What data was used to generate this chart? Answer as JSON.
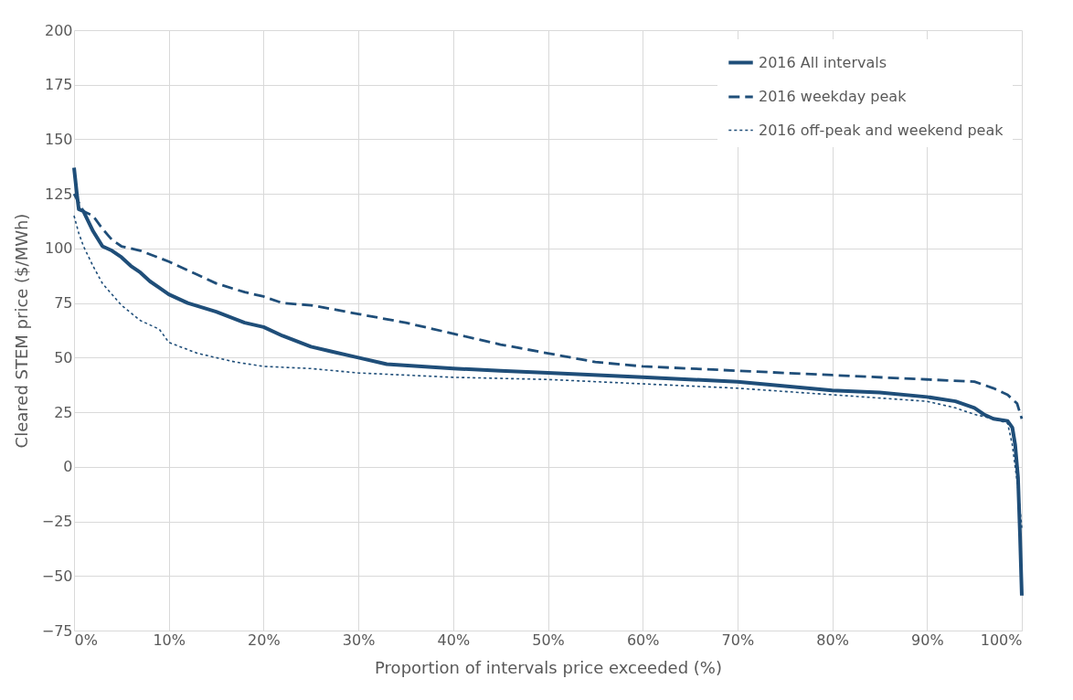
{
  "chart_data": {
    "type": "line",
    "xlabel": "Proportion of intervals price exceeded (%)",
    "ylabel": "Cleared STEM price ($/MWh)",
    "xlim": [
      0,
      100
    ],
    "ylim": [
      -75,
      200
    ],
    "xticks": [
      {
        "value": 0,
        "label": "0%"
      },
      {
        "value": 10,
        "label": "10%"
      },
      {
        "value": 20,
        "label": "20%"
      },
      {
        "value": 30,
        "label": "30%"
      },
      {
        "value": 40,
        "label": "40%"
      },
      {
        "value": 50,
        "label": "50%"
      },
      {
        "value": 60,
        "label": "60%"
      },
      {
        "value": 70,
        "label": "70%"
      },
      {
        "value": 80,
        "label": "80%"
      },
      {
        "value": 90,
        "label": "90%"
      },
      {
        "value": 100,
        "label": "100%"
      }
    ],
    "yticks": [
      -75,
      -50,
      -25,
      0,
      25,
      50,
      75,
      100,
      125,
      150,
      175,
      200
    ],
    "grid": true,
    "legend": "top right",
    "marker": "none",
    "series": [
      {
        "name": "2016 All intervals",
        "color": "#1f4e79",
        "line_style": "solid",
        "x": [
          0,
          0.3,
          0.5,
          1,
          2,
          3,
          4,
          5,
          6,
          7,
          8,
          9,
          10,
          12,
          15,
          18,
          20,
          22,
          25,
          27,
          30,
          33,
          40,
          45,
          50,
          60,
          70,
          75,
          80,
          85,
          90,
          93,
          95,
          96,
          97,
          98.5,
          99,
          99.3,
          99.6,
          99.8,
          100
        ],
        "values": [
          137,
          125,
          118,
          117,
          108,
          101,
          99,
          96,
          92,
          89,
          85,
          82,
          79,
          75,
          71,
          66,
          64,
          60,
          55,
          53,
          50,
          47,
          45,
          44,
          43,
          41,
          39,
          37,
          35,
          34,
          32,
          30,
          27,
          24,
          22,
          21,
          18,
          10,
          -5,
          -30,
          -59
        ]
      },
      {
        "name": "2016 weekday peak",
        "color": "#1f4e79",
        "line_style": "dashed",
        "x": [
          0,
          1,
          2,
          3,
          4,
          5,
          7,
          10,
          13,
          15,
          18,
          20,
          22,
          25,
          30,
          35,
          40,
          45,
          50,
          55,
          60,
          70,
          80,
          90,
          95,
          97,
          98.5,
          99.5,
          100
        ],
        "values": [
          125,
          117,
          115,
          109,
          104,
          101,
          99,
          94,
          88,
          84,
          80,
          78,
          75,
          74,
          70,
          66,
          61,
          56,
          52,
          48,
          46,
          44,
          42,
          40,
          39,
          36,
          33,
          29,
          22
        ]
      },
      {
        "name": "2016 off-peak and weekend peak",
        "color": "#1f4e79",
        "line_style": "dotted",
        "x": [
          0,
          0.5,
          1,
          2,
          3,
          5,
          7,
          9,
          10,
          13,
          17,
          20,
          25,
          30,
          40,
          50,
          60,
          70,
          80,
          90,
          93,
          95,
          97,
          98.5,
          99,
          99.3,
          99.6,
          100
        ],
        "values": [
          115,
          107,
          101,
          92,
          84,
          74,
          67,
          63,
          57,
          52,
          48,
          46,
          45,
          43,
          41,
          40,
          38,
          36,
          33,
          30,
          27,
          24,
          22,
          20,
          10,
          0,
          -10,
          -28
        ]
      }
    ]
  }
}
